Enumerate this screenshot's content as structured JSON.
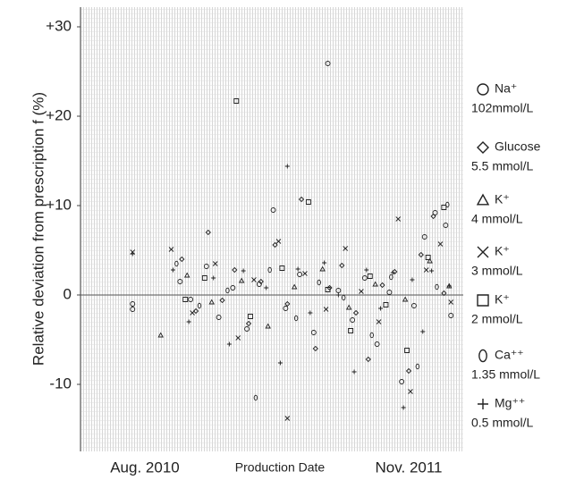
{
  "chart_data": {
    "type": "scatter",
    "ylabel": "Relative deviation from prescription f (%)",
    "xlabel": "Production Date",
    "xlim": [
      -3.66,
      18.1
    ],
    "xticks": [
      {
        "value": 0,
        "label": "Aug. 2010"
      },
      {
        "value": 15,
        "label": "Nov. 2011"
      }
    ],
    "ylim": [
      -17.5,
      32.2
    ],
    "yticks": [
      {
        "value": -10,
        "label": "-10"
      },
      0,
      {
        "value": 10,
        "label": "+10"
      },
      {
        "value": 20,
        "label": "+20"
      },
      {
        "value": 30,
        "label": "+30"
      }
    ],
    "zero_line": true,
    "series": [
      {
        "name": "Na⁺",
        "concentration": "102mmol/L",
        "marker": "circle",
        "color": "#222222",
        "x": [
          -0.7,
          -0.7,
          2.0,
          2.6,
          3.5,
          4.2,
          5.0,
          5.8,
          6.5,
          7.3,
          8.0,
          8.8,
          9.6,
          10.4,
          11.0,
          11.8,
          12.5,
          13.2,
          13.9,
          14.6,
          15.3,
          15.9,
          16.5,
          17.1,
          17.4
        ],
        "values": [
          -1.0,
          -1.6,
          1.5,
          -0.5,
          3.2,
          -2.5,
          0.8,
          -3.8,
          1.2,
          9.5,
          -1.5,
          2.3,
          -4.2,
          25.9,
          0.5,
          -2.8,
          1.9,
          -5.5,
          0.3,
          -9.7,
          -1.2,
          6.5,
          9.2,
          7.8,
          -2.3
        ]
      },
      {
        "name": "Glucose",
        "concentration": "5.5 mmol/L",
        "marker": "diamond",
        "color": "#222222",
        "x": [
          2.1,
          2.9,
          3.6,
          4.4,
          5.1,
          5.9,
          6.6,
          7.4,
          8.1,
          8.9,
          9.7,
          10.5,
          11.2,
          12.0,
          12.7,
          13.5,
          14.2,
          15.0,
          15.7,
          16.4,
          17.0
        ],
        "values": [
          4.0,
          -1.8,
          7.0,
          -0.6,
          2.8,
          -3.2,
          1.5,
          5.6,
          -1.0,
          10.7,
          -6.0,
          0.8,
          3.3,
          -2.0,
          -7.2,
          1.1,
          2.6,
          -8.5,
          4.5,
          8.8,
          0.2
        ]
      },
      {
        "name": "K⁺",
        "concentration": "4 mmol/L",
        "marker": "triangle",
        "color": "#222222",
        "x": [
          0.9,
          2.4,
          3.8,
          5.5,
          7.0,
          8.5,
          10.1,
          11.6,
          13.1,
          14.8,
          16.2,
          17.3
        ],
        "values": [
          -4.5,
          2.2,
          -0.8,
          1.6,
          -3.5,
          0.9,
          2.9,
          -1.4,
          1.2,
          -0.5,
          3.8,
          1.0
        ]
      },
      {
        "name": "K⁺",
        "concentration": "3 mmol/L",
        "marker": "cross",
        "color": "#222222",
        "x": [
          -0.7,
          1.5,
          2.7,
          4.0,
          5.3,
          6.2,
          7.6,
          8.1,
          9.1,
          10.3,
          11.4,
          12.3,
          13.3,
          14.4,
          15.1,
          16.0,
          16.8,
          17.4
        ],
        "values": [
          4.8,
          5.1,
          -2.0,
          3.5,
          -4.8,
          1.7,
          6.0,
          -13.8,
          2.4,
          -1.6,
          5.2,
          0.4,
          -3.0,
          8.5,
          -10.8,
          2.8,
          5.7,
          -0.8
        ]
      },
      {
        "name": "K⁺",
        "concentration": "2 mmol/L",
        "marker": "square",
        "color": "#222222",
        "x": [
          2.3,
          3.4,
          5.2,
          6.0,
          7.8,
          9.3,
          10.4,
          11.7,
          12.8,
          13.7,
          14.9,
          16.1,
          17.0
        ],
        "values": [
          -0.5,
          1.9,
          21.7,
          -2.4,
          3.0,
          10.4,
          0.6,
          -4.0,
          2.1,
          -1.1,
          -6.2,
          4.2,
          9.8
        ]
      },
      {
        "name": "Ca⁺⁺",
        "concentration": "1.35 mmol/L",
        "marker": "oval",
        "color": "#222222",
        "x": [
          1.8,
          3.1,
          4.7,
          6.3,
          7.1,
          8.6,
          9.9,
          11.3,
          12.9,
          14.0,
          15.5,
          16.6,
          17.2
        ],
        "values": [
          3.5,
          -1.2,
          0.5,
          -11.5,
          2.8,
          -2.6,
          1.4,
          -0.3,
          -4.5,
          2.0,
          -8.0,
          0.9,
          10.1
        ]
      },
      {
        "name": "Mg⁺⁺",
        "concentration": "0.5 mmol/L",
        "marker": "plus",
        "color": "#222222",
        "x": [
          -0.7,
          1.6,
          2.5,
          3.9,
          4.8,
          5.6,
          6.9,
          7.7,
          8.1,
          8.7,
          9.4,
          10.2,
          11.0,
          11.9,
          12.6,
          13.4,
          14.1,
          14.7,
          15.2,
          15.8,
          16.3,
          17.3
        ],
        "values": [
          4.6,
          2.8,
          -3.0,
          1.9,
          -5.5,
          2.7,
          0.8,
          -7.6,
          14.4,
          2.9,
          -2.0,
          3.6,
          0.0,
          -8.6,
          2.8,
          -1.5,
          2.5,
          -12.6,
          1.7,
          -4.1,
          2.7,
          1.0
        ]
      }
    ]
  }
}
